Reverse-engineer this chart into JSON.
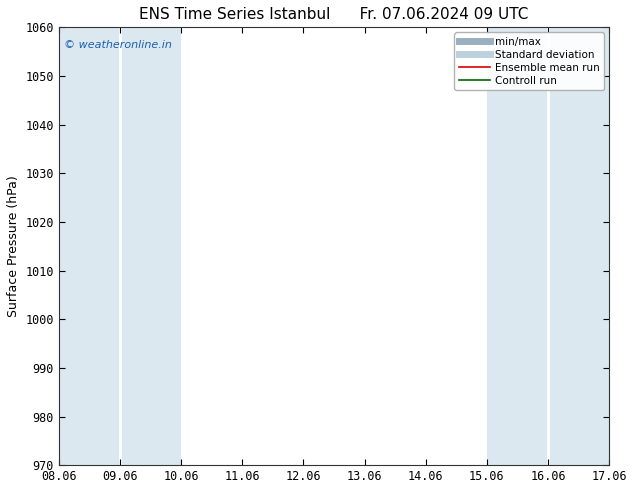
{
  "title_left": "ENS Time Series Istanbul",
  "title_right": "Fr. 07.06.2024 09 UTC",
  "ylabel": "Surface Pressure (hPa)",
  "ylim": [
    970,
    1060
  ],
  "yticks": [
    970,
    980,
    990,
    1000,
    1010,
    1020,
    1030,
    1040,
    1050,
    1060
  ],
  "xlim_start": 0,
  "xlim_end": 9,
  "xtick_labels": [
    "08.06",
    "09.06",
    "10.06",
    "11.06",
    "12.06",
    "13.06",
    "14.06",
    "15.06",
    "16.06",
    "17.06"
  ],
  "xtick_positions": [
    0,
    1,
    2,
    3,
    4,
    5,
    6,
    7,
    8,
    9
  ],
  "shaded_bands": [
    {
      "x_start": 0.0,
      "x_end": 0.5,
      "color": "#dce8f0"
    },
    {
      "x_start": 0.5,
      "x_end": 1.5,
      "color": "#dce8f0"
    },
    {
      "x_start": 1.5,
      "x_end": 2.5,
      "color": "#dce8f0"
    },
    {
      "x_start": 7.0,
      "x_end": 7.5,
      "color": "#dce8f0"
    },
    {
      "x_start": 7.5,
      "x_end": 8.5,
      "color": "#dce8f0"
    },
    {
      "x_start": 8.5,
      "x_end": 9.0,
      "color": "#dce8f0"
    }
  ],
  "watermark_text": "© weatheronline.in",
  "watermark_color": "#1a5fb0",
  "background_color": "#ffffff",
  "plot_bg_color": "#ffffff",
  "legend_items": [
    {
      "label": "min/max",
      "color": "#9ab0c0",
      "linestyle": "solid",
      "linewidth": 5
    },
    {
      "label": "Standard deviation",
      "color": "#bdd0de",
      "linestyle": "solid",
      "linewidth": 5
    },
    {
      "label": "Ensemble mean run",
      "color": "#dd0000",
      "linestyle": "solid",
      "linewidth": 1.2
    },
    {
      "label": "Controll run",
      "color": "#006600",
      "linestyle": "solid",
      "linewidth": 1.2
    }
  ],
  "title_fontsize": 11,
  "label_fontsize": 9,
  "tick_fontsize": 8.5,
  "legend_fontsize": 7.5
}
